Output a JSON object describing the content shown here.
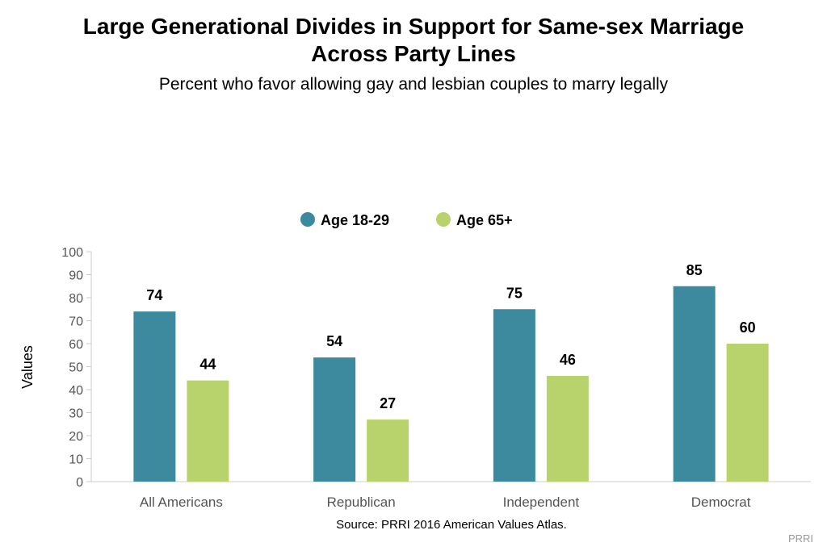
{
  "title_line1": "Large Generational Divides in Support for Same-sex Marriage",
  "title_line2": "Across Party Lines",
  "subtitle": "Percent who favor allowing gay and lesbian couples to marry legally",
  "source": "Source: PRRI 2016 American Values Atlas.",
  "credit": "PRRI",
  "colors": {
    "series1": "#3d8a9e",
    "series2": "#b9d36c",
    "axis": "#cccccc",
    "tick_text": "#555555"
  },
  "chart_data": {
    "type": "bar",
    "categories": [
      "All Americans",
      "Republican",
      "Independent",
      "Democrat"
    ],
    "series": [
      {
        "name": "Age 18-29",
        "values": [
          74,
          54,
          75,
          85
        ]
      },
      {
        "name": "Age 65+",
        "values": [
          44,
          27,
          46,
          60
        ]
      }
    ],
    "ylabel": "Values",
    "ylim": [
      0,
      100
    ],
    "yticks": [
      0,
      10,
      20,
      30,
      40,
      50,
      60,
      70,
      80,
      90,
      100
    ],
    "legend_position": "top-center",
    "grid": false
  }
}
